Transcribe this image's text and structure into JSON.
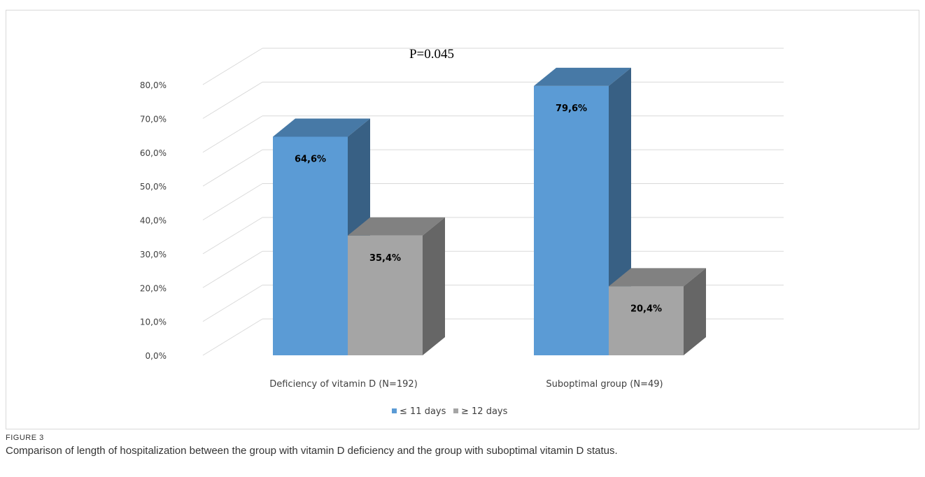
{
  "figure": {
    "label": "FIGURE 3",
    "caption": "Comparison of length of hospitalization between the group with vitamin D deficiency and the group with suboptimal vitamin D status."
  },
  "chart_data": {
    "type": "bar",
    "style": "3d-clustered-column",
    "annotation": "P=0.045",
    "categories": [
      "Deficiency of vitamin D (N=192)",
      "Suboptimal group (N=49)"
    ],
    "series": [
      {
        "name": "≤ 11 days",
        "values": [
          64.6,
          79.6
        ],
        "labels": [
          "64,6%",
          "79,6%"
        ],
        "color": "#5b9bd5"
      },
      {
        "name": "≥ 12 days",
        "values": [
          35.4,
          20.4
        ],
        "labels": [
          "35,4%",
          "20,4%"
        ],
        "color": "#a5a5a5"
      }
    ],
    "ylim": [
      0,
      80
    ],
    "yticks": [
      "0,0%",
      "10,0%",
      "20,0%",
      "30,0%",
      "40,0%",
      "50,0%",
      "60,0%",
      "70,0%",
      "80,0%"
    ],
    "grid": true,
    "legend": "bottom"
  }
}
